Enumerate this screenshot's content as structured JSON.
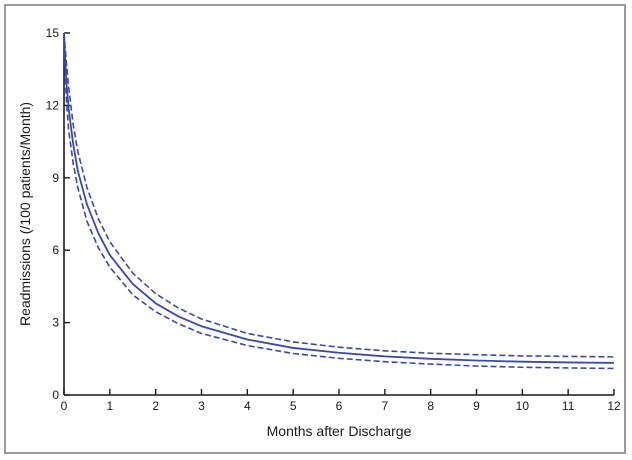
{
  "chart_data": {
    "type": "line",
    "title": "",
    "xlabel": "Months after Discharge",
    "ylabel": "Readmissions (/100 patients/Month)",
    "xlim": [
      0,
      12
    ],
    "ylim": [
      0,
      15
    ],
    "x_ticks": [
      0,
      1,
      2,
      3,
      4,
      5,
      6,
      7,
      8,
      9,
      10,
      11,
      12
    ],
    "y_ticks": [
      0,
      3,
      6,
      9,
      12,
      15
    ],
    "grid": false,
    "legend": "none",
    "line_color": "#3a49a8",
    "x": [
      0,
      0.05,
      0.1,
      0.2,
      0.3,
      0.5,
      0.75,
      1,
      1.5,
      2,
      2.5,
      3,
      4,
      5,
      6,
      7,
      8,
      9,
      10,
      11,
      12
    ],
    "series": [
      {
        "style": "solid",
        "values": [
          15.0,
          13.0,
          11.9,
          10.4,
          9.3,
          7.9,
          6.7,
          5.8,
          4.6,
          3.8,
          3.25,
          2.85,
          2.3,
          1.95,
          1.75,
          1.6,
          1.5,
          1.43,
          1.38,
          1.35,
          1.33
        ]
      },
      {
        "style": "dashed",
        "values": [
          15.0,
          13.8,
          12.8,
          11.2,
          10.1,
          8.6,
          7.3,
          6.35,
          5.05,
          4.2,
          3.6,
          3.15,
          2.55,
          2.2,
          1.98,
          1.83,
          1.73,
          1.67,
          1.62,
          1.6,
          1.58
        ]
      },
      {
        "style": "dashed",
        "values": [
          14.6,
          12.3,
          11.0,
          9.6,
          8.6,
          7.2,
          6.1,
          5.3,
          4.15,
          3.45,
          2.95,
          2.55,
          2.05,
          1.72,
          1.52,
          1.38,
          1.28,
          1.2,
          1.15,
          1.12,
          1.1
        ]
      }
    ]
  }
}
